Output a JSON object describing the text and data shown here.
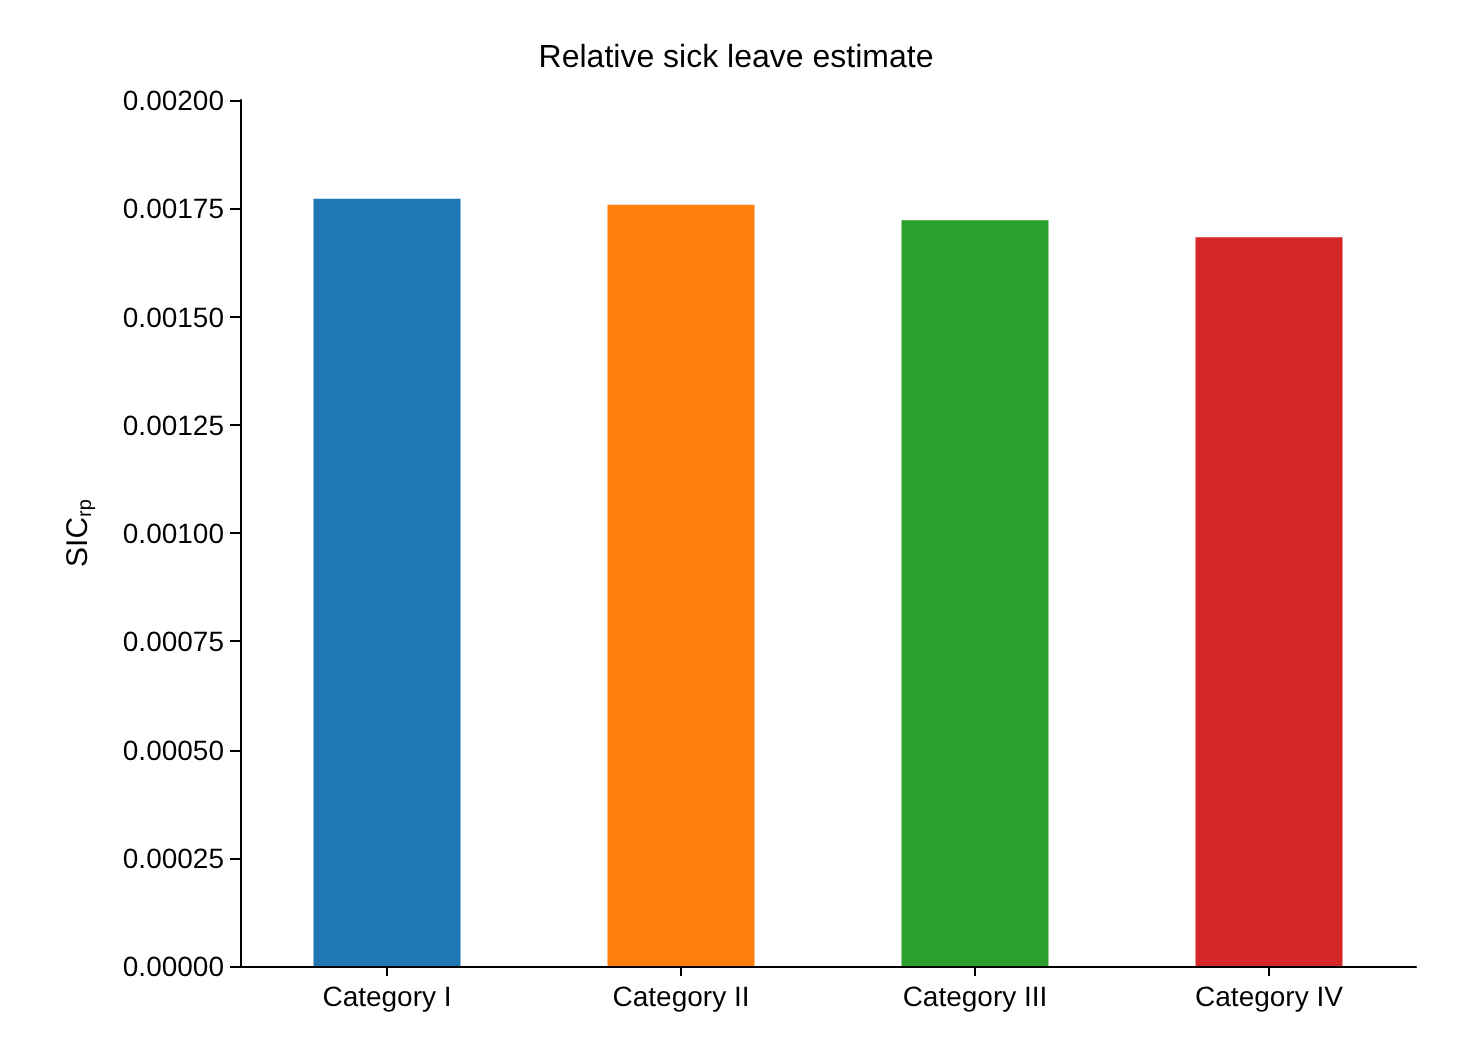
{
  "chart_data": {
    "type": "bar",
    "title": "Relative sick leave estimate",
    "ylabel": "SIC$_{rp}$",
    "categories": [
      "Category I",
      "Category II",
      "Category III",
      "Category IV"
    ],
    "values": [
      0.001772,
      0.001758,
      0.001722,
      0.001683
    ],
    "colors": [
      "#1f77b4",
      "#ff7f0e",
      "#2ca02c",
      "#d62728"
    ],
    "ylim": [
      0,
      0.002
    ],
    "yticks": [
      {
        "value": 0,
        "label": "0.00000"
      },
      {
        "value": 0.00025,
        "label": "0.00025"
      },
      {
        "value": 0.0005,
        "label": "0.00050"
      },
      {
        "value": 0.00075,
        "label": "0.00075"
      },
      {
        "value": 0.001,
        "label": "0.00100"
      },
      {
        "value": 0.00125,
        "label": "0.00125"
      },
      {
        "value": 0.0015,
        "label": "0.00150"
      },
      {
        "value": 0.00175,
        "label": "0.00175"
      },
      {
        "value": 0.002,
        "label": "0.00200"
      }
    ],
    "grid": false
  }
}
